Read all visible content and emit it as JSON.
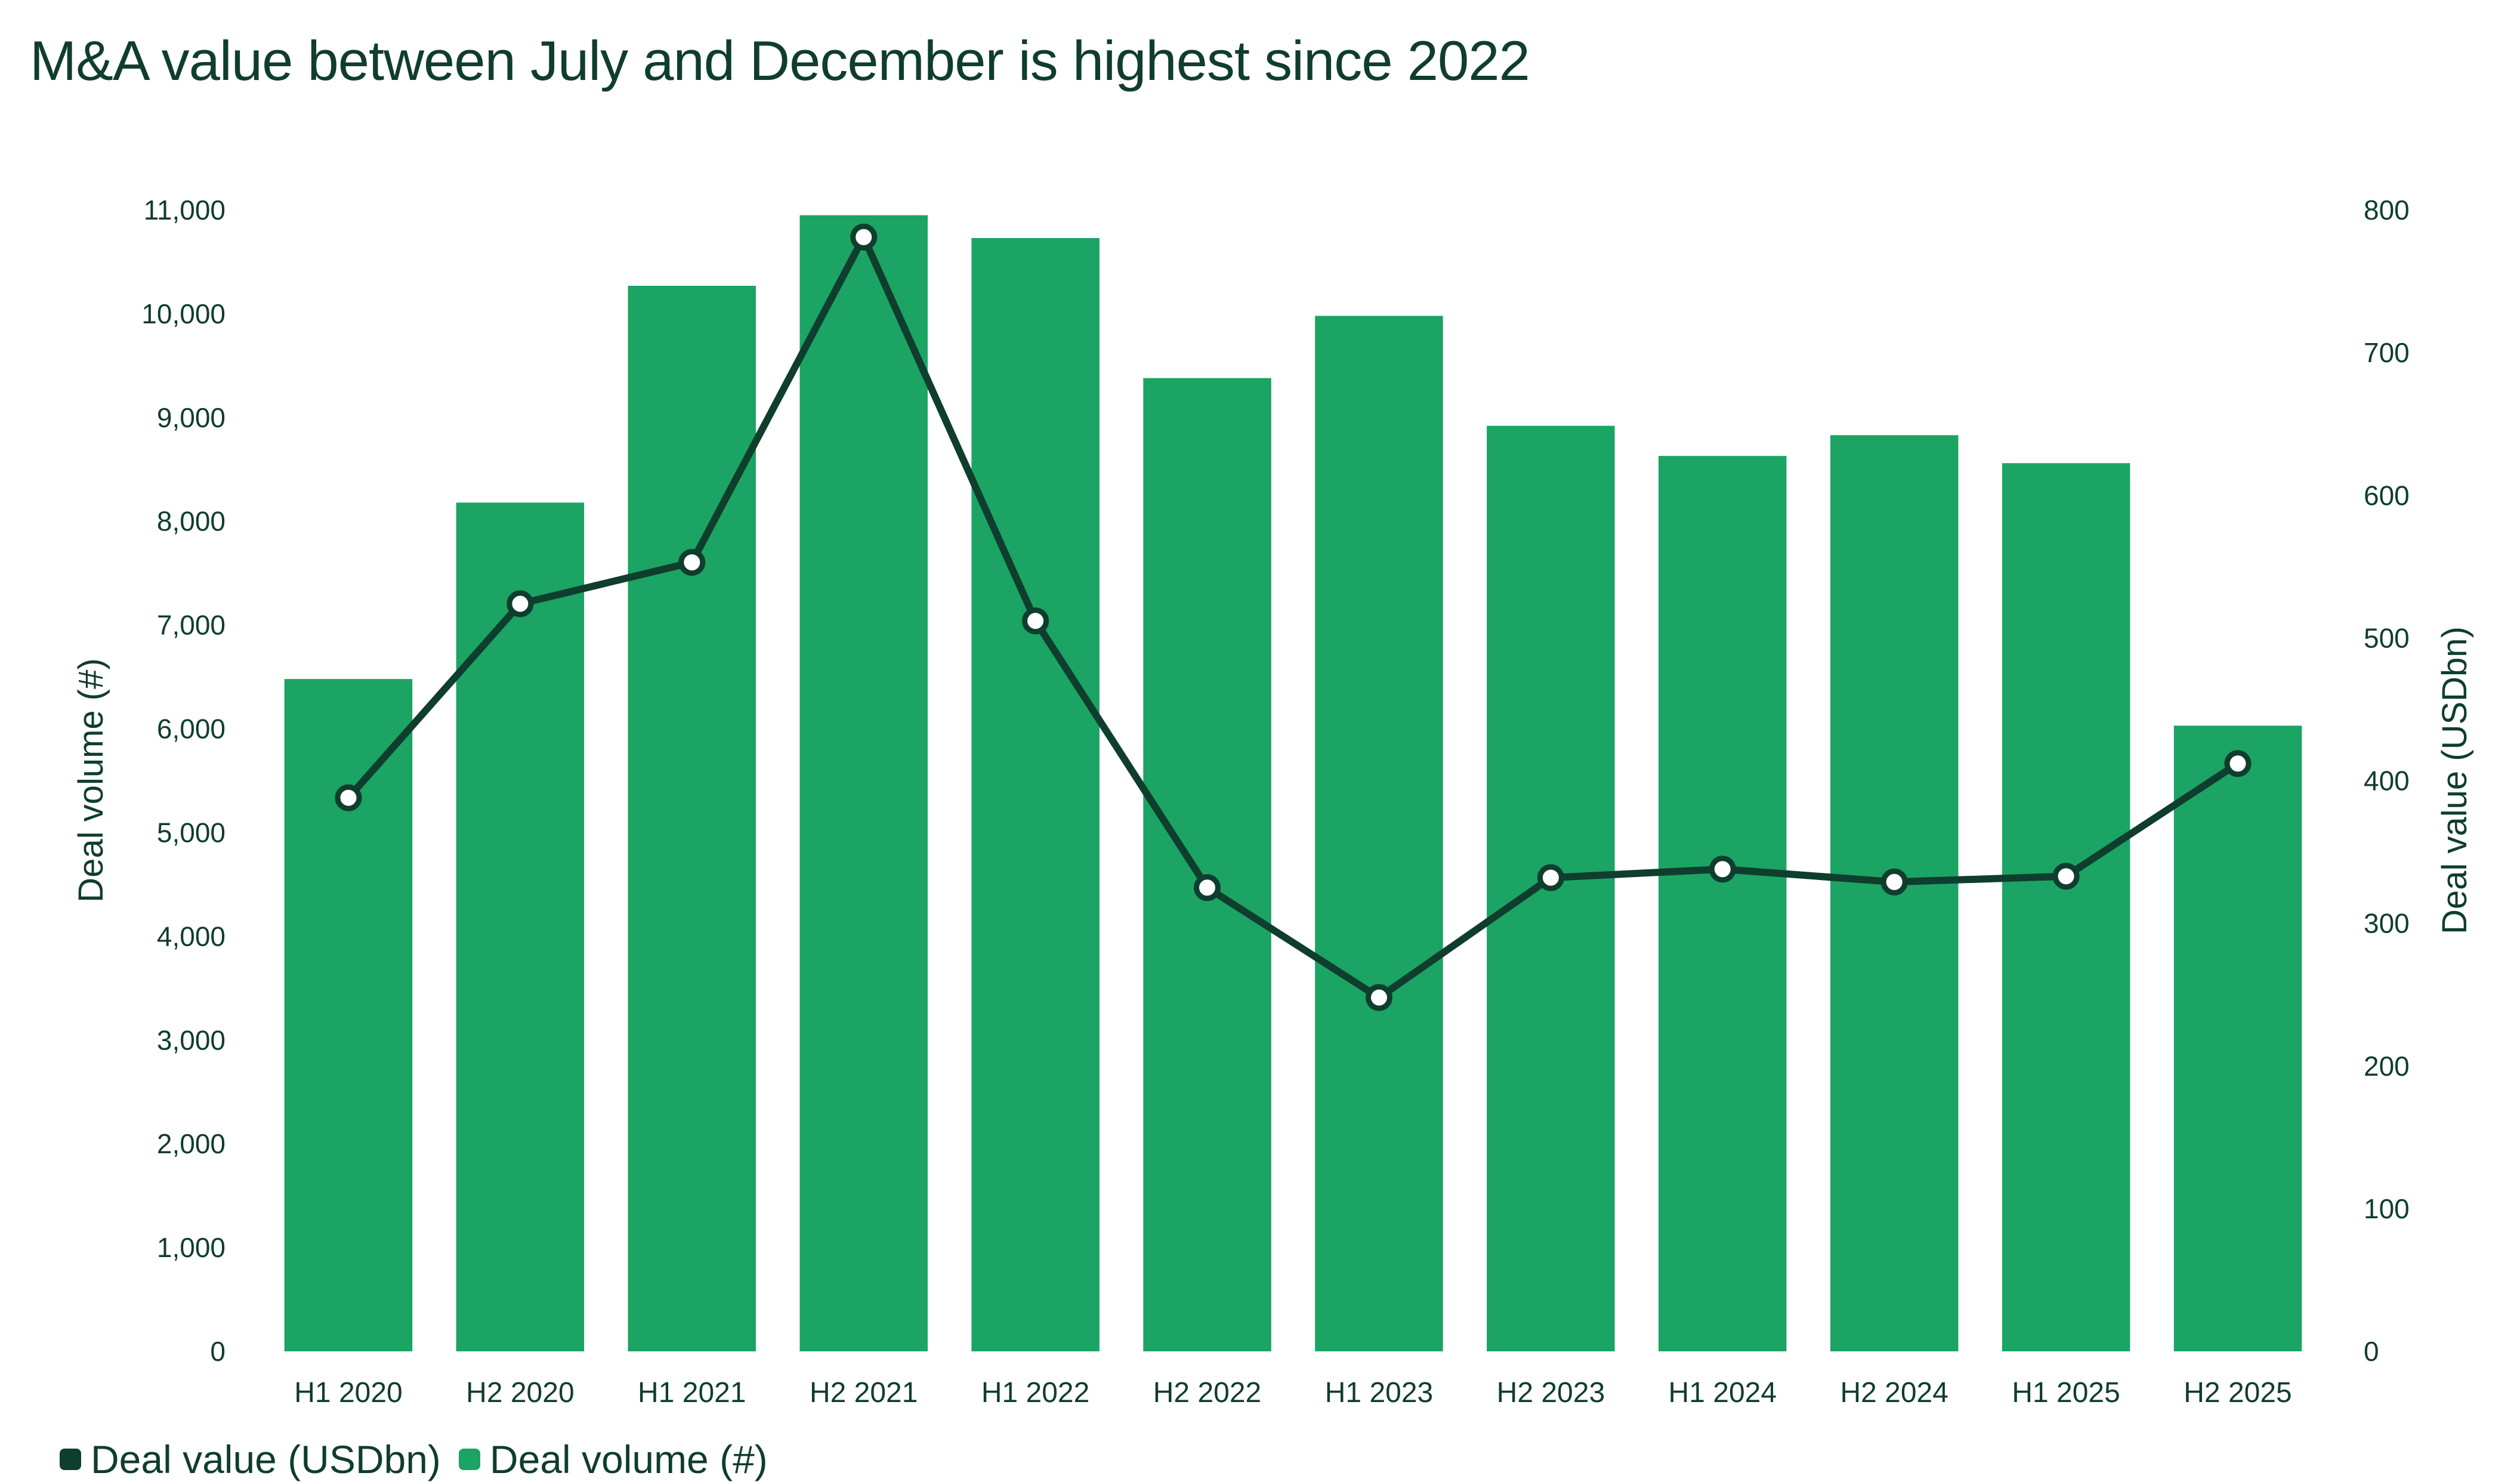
{
  "title": "M&A value between July and December is highest since 2022",
  "colors": {
    "bar": "#1ba463",
    "line": "#0f3d2e",
    "marker_fill": "#ffffff",
    "text": "#0f3d2e"
  },
  "legend": {
    "items": [
      {
        "label": "Deal value (USDbn)",
        "color": "#0f3d2e"
      },
      {
        "label": "Deal volume (#)",
        "color": "#1ba463"
      }
    ],
    "position": "bottom-left"
  },
  "chart_data": {
    "type": "bar",
    "title": "M&A value between July and December is highest since 2022",
    "categories": [
      "H1 2020",
      "H2 2020",
      "H1 2021",
      "H2 2021",
      "H1 2022",
      "H2 2022",
      "H1 2023",
      "H2 2023",
      "H1 2024",
      "H2 2024",
      "H1 2025",
      "H2 2025"
    ],
    "series": [
      {
        "name": "Deal volume (#)",
        "type": "bar",
        "axis": "left",
        "values": [
          6480,
          8180,
          10270,
          10950,
          10730,
          9380,
          9980,
          8920,
          8630,
          8830,
          8560,
          6030
        ]
      },
      {
        "name": "Deal value (USDbn)",
        "type": "line",
        "axis": "right",
        "values": [
          388,
          524,
          553,
          781,
          512,
          325,
          248,
          332,
          338,
          329,
          333,
          412
        ]
      }
    ],
    "y_left": {
      "label": "Deal volume (#)",
      "min": 0,
      "max": 11000,
      "ticks": [
        0,
        1000,
        2000,
        3000,
        4000,
        5000,
        6000,
        7000,
        8000,
        9000,
        10000,
        11000
      ],
      "tick_labels": [
        "0",
        "1,000",
        "2,000",
        "3,000",
        "4,000",
        "5,000",
        "6,000",
        "7,000",
        "8,000",
        "9,000",
        "10,000",
        "11,000"
      ]
    },
    "y_right": {
      "label": "Deal value (USDbn)",
      "min": 0,
      "max": 800,
      "ticks": [
        0,
        100,
        200,
        300,
        400,
        500,
        600,
        700,
        800
      ],
      "tick_labels": [
        "0",
        "100",
        "200",
        "300",
        "400",
        "500",
        "600",
        "700",
        "800"
      ]
    },
    "grid": false,
    "legend_position": "bottom-left"
  }
}
